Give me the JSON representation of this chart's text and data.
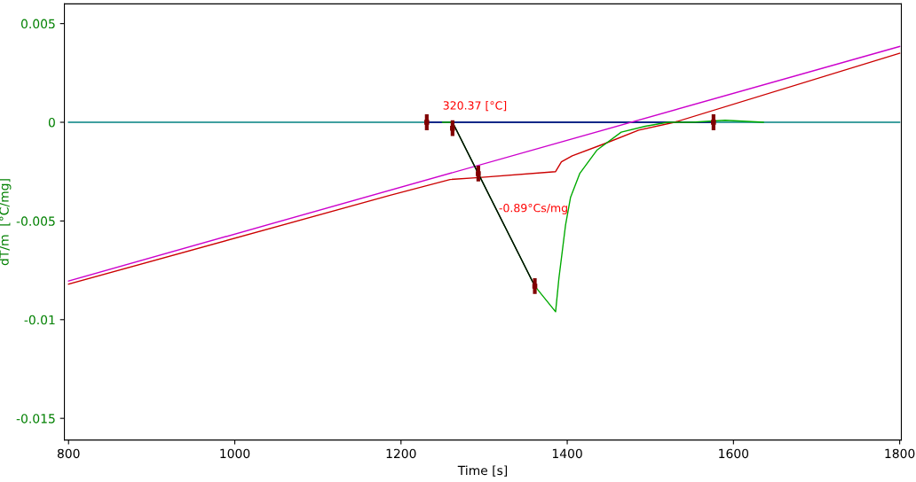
{
  "chart_data": {
    "type": "line",
    "xlabel": "Time [s]",
    "ylabel": "dT/m  [°C/mg]",
    "xlim": [
      795,
      1802
    ],
    "xticks": [
      800,
      1000,
      1200,
      1400,
      1600,
      1800
    ],
    "ylim": [
      -0.0161,
      0.006
    ],
    "yticks": [
      -0.015,
      -0.01,
      -0.005,
      0,
      0.005
    ],
    "grid": false,
    "legend": false,
    "marker": "none",
    "line_style": "solid",
    "series": [
      {
        "color": "#008080",
        "x": [
          800,
          1800
        ],
        "values": [
          0,
          0
        ]
      },
      {
        "color": "#000080",
        "x": [
          1231,
          1576
        ],
        "values": [
          0,
          0
        ]
      },
      {
        "color": "#cc00cc",
        "x": [
          800,
          1800
        ],
        "values": [
          -0.00804,
          0.00384
        ]
      },
      {
        "color": "#cc0000",
        "x": [
          800,
          1187,
          1259,
          1294,
          1386,
          1393,
          1406,
          1444,
          1486,
          1529,
          1800
        ],
        "values": [
          -0.0082,
          -0.0037,
          -0.0029,
          -0.0028,
          -0.0025,
          -0.002,
          -0.0017,
          -0.0011,
          -0.0004,
          0,
          0.0035
        ]
      },
      {
        "color": "#00aa00",
        "x": [
          1250,
          1262,
          1293,
          1361,
          1386,
          1390,
          1398,
          1404,
          1415,
          1436,
          1465,
          1494,
          1521,
          1550,
          1590,
          1636
        ],
        "values": [
          0,
          0,
          -0.0026,
          -0.0083,
          -0.0096,
          -0.0079,
          -0.0052,
          -0.0038,
          -0.0026,
          -0.0014,
          -0.0005,
          -0.0002,
          0,
          0,
          0.0001,
          0
        ]
      },
      {
        "color": "#000000",
        "x": [
          1262,
          1361
        ],
        "values": [
          0,
          -0.0083
        ]
      },
      {
        "type": "scatter",
        "marker": "square",
        "color": "#800000",
        "x": [
          1231,
          1262,
          1293,
          1361,
          1576
        ],
        "values": [
          0,
          -0.0003,
          -0.0026,
          -0.0083,
          0
        ],
        "errors": [
          0.0004,
          0.0004,
          0.0004,
          0.0004,
          0.0004
        ]
      }
    ],
    "annotations": [
      "320.37 [°C]",
      "-0.89°Cs/mg"
    ]
  }
}
